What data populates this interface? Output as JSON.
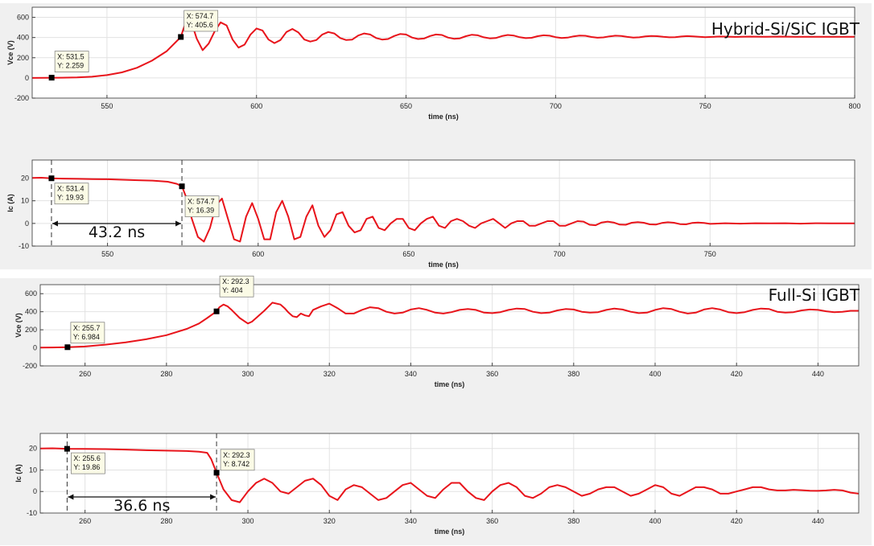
{
  "section_titles": [
    "Hybrid-Si/SiC IGBT",
    "Full-Si IGBT"
  ],
  "chart_data": [
    {
      "type": "line",
      "title": "",
      "xlabel": "time (ns)",
      "ylabel": "Vce (V)",
      "xlim": [
        525,
        800
      ],
      "ylim": [
        -200,
        700
      ],
      "xticks": [
        550,
        600,
        650,
        700,
        750,
        800
      ],
      "yticks": [
        -200,
        0,
        200,
        400,
        600
      ],
      "grid": true,
      "color": "#e8141b",
      "x": [
        525,
        530,
        535,
        540,
        545,
        550,
        555,
        560,
        565,
        570,
        574.7,
        575.5,
        576.5,
        577.5,
        580,
        582,
        584,
        586,
        588,
        590,
        592,
        594,
        596,
        598,
        600,
        602,
        604,
        606,
        608,
        610,
        612,
        614,
        616,
        618,
        620,
        622,
        624,
        626,
        628,
        630,
        632,
        634,
        636,
        638,
        640,
        642,
        644,
        646,
        648,
        650,
        652,
        654,
        656,
        658,
        660,
        662,
        664,
        666,
        668,
        670,
        672,
        674,
        676,
        678,
        680,
        682,
        684,
        686,
        688,
        690,
        692,
        694,
        696,
        698,
        700,
        702,
        704,
        706,
        708,
        710,
        712,
        714,
        716,
        718,
        720,
        722,
        724,
        726,
        728,
        730,
        732,
        734,
        736,
        738,
        740,
        742,
        744,
        746,
        748,
        750,
        755,
        760,
        765,
        770,
        775,
        780,
        785,
        790,
        795,
        800
      ],
      "y": [
        0,
        1,
        2,
        5,
        12,
        28,
        55,
        100,
        170,
        265,
        405.6,
        480,
        560,
        620,
        390,
        275,
        340,
        460,
        550,
        520,
        380,
        300,
        330,
        430,
        490,
        470,
        380,
        345,
        375,
        455,
        485,
        450,
        380,
        360,
        375,
        430,
        455,
        440,
        395,
        375,
        380,
        420,
        440,
        430,
        395,
        380,
        385,
        415,
        435,
        430,
        400,
        385,
        390,
        415,
        430,
        425,
        400,
        388,
        392,
        413,
        428,
        422,
        402,
        392,
        395,
        414,
        425,
        420,
        403,
        394,
        397,
        413,
        422,
        418,
        404,
        396,
        399,
        412,
        420,
        417,
        405,
        398,
        401,
        412,
        418,
        415,
        406,
        400,
        402,
        411,
        416,
        413,
        407,
        402,
        404,
        410,
        414,
        411,
        407,
        404,
        410,
        406,
        409,
        407,
        409,
        407,
        408,
        408,
        408,
        408
      ],
      "annotations": [
        {
          "x": 531.5,
          "y": 2.259,
          "label_x": "X: 531.5",
          "label_y": "Y: 2.259"
        },
        {
          "x": 574.7,
          "y": 405.6,
          "label_x": "X: 574.7",
          "label_y": "Y: 405.6"
        }
      ]
    },
    {
      "type": "line",
      "title": "",
      "xlabel": "time (ns)",
      "ylabel": "Ic (A)",
      "xlim": [
        525,
        798
      ],
      "ylim": [
        -10,
        28
      ],
      "xticks": [
        550,
        600,
        650,
        700,
        750
      ],
      "yticks": [
        -10,
        0,
        10,
        20
      ],
      "grid": true,
      "color": "#e8141b",
      "x": [
        525,
        528,
        531.4,
        535,
        540,
        545,
        550,
        555,
        560,
        565,
        570,
        573,
        574.7,
        576,
        578,
        580,
        582,
        584,
        586,
        588,
        590,
        592,
        594,
        596,
        598,
        600,
        602,
        604,
        606,
        608,
        610,
        612,
        614,
        616,
        618,
        620,
        622,
        624,
        626,
        628,
        630,
        632,
        634,
        636,
        638,
        640,
        642,
        644,
        646,
        648,
        650,
        652,
        654,
        656,
        658,
        660,
        662,
        664,
        666,
        668,
        670,
        672,
        674,
        676,
        678,
        680,
        682,
        684,
        686,
        688,
        690,
        692,
        694,
        696,
        698,
        700,
        702,
        704,
        706,
        708,
        710,
        712,
        714,
        716,
        718,
        720,
        722,
        724,
        726,
        728,
        730,
        732,
        734,
        736,
        738,
        740,
        742,
        744,
        746,
        748,
        750,
        755,
        760,
        765,
        770,
        775,
        780,
        785,
        790,
        795,
        798
      ],
      "y": [
        20.1,
        20.2,
        19.93,
        19.8,
        19.7,
        19.6,
        19.5,
        19.3,
        19.1,
        18.9,
        18.4,
        17.5,
        16.39,
        12,
        2,
        -6,
        -8,
        -2,
        8,
        11,
        2,
        -7,
        -8,
        3,
        9,
        2,
        -7,
        -7,
        5,
        10,
        3,
        -7,
        -6,
        3,
        8,
        -1,
        -6,
        -3,
        4,
        5,
        -1,
        -4,
        -3,
        2,
        3,
        -2,
        -3,
        0,
        2,
        2,
        -2,
        -3,
        0,
        2,
        3,
        -1,
        -2,
        1,
        2,
        1,
        -1,
        -2,
        0,
        1,
        2,
        0,
        -2,
        0,
        1,
        1,
        -1,
        -1,
        0,
        1,
        1,
        -1,
        -1,
        0,
        1,
        0.8,
        -0.6,
        -0.8,
        0.4,
        0.8,
        0.4,
        -0.5,
        -0.6,
        0.3,
        0.6,
        0.3,
        -0.4,
        -0.5,
        0.2,
        0.5,
        0.3,
        -0.3,
        -0.4,
        0.2,
        0.4,
        0.2,
        -0.2,
        0.1,
        -0.1,
        0.1,
        0,
        0.1,
        -0.1,
        0.1,
        0,
        0,
        0
      ],
      "annotations": [
        {
          "x": 531.4,
          "y": 19.93,
          "label_x": "X: 531.4",
          "label_y": "Y: 19.93"
        },
        {
          "x": 574.7,
          "y": 16.39,
          "label_x": "X: 574.7",
          "label_y": "Y: 16.39"
        }
      ],
      "interval": {
        "label": "43.2 ns",
        "x_start": 531.4,
        "x_end": 574.7
      }
    },
    {
      "type": "line",
      "title": "",
      "xlabel": "time (ns)",
      "ylabel": "Vce (V)",
      "xlim": [
        249,
        450
      ],
      "ylim": [
        -200,
        700
      ],
      "xticks": [
        260,
        280,
        300,
        320,
        340,
        360,
        380,
        400,
        420,
        440
      ],
      "yticks": [
        -200,
        0,
        200,
        400,
        600
      ],
      "grid": true,
      "color": "#e8141b",
      "x": [
        249,
        252,
        255.7,
        260,
        265,
        270,
        275,
        280,
        285,
        288,
        290,
        292.3,
        293,
        294,
        295,
        296,
        298,
        300,
        301,
        302,
        304,
        306,
        308,
        309,
        310,
        311,
        312,
        313,
        314,
        315,
        316,
        318,
        320,
        322,
        324,
        326,
        328,
        330,
        332,
        334,
        336,
        338,
        340,
        342,
        344,
        346,
        348,
        350,
        352,
        354,
        356,
        358,
        360,
        362,
        364,
        366,
        368,
        370,
        372,
        374,
        376,
        378,
        380,
        382,
        384,
        386,
        388,
        390,
        392,
        394,
        396,
        398,
        400,
        402,
        404,
        406,
        408,
        410,
        412,
        414,
        416,
        418,
        420,
        422,
        424,
        426,
        428,
        430,
        432,
        434,
        436,
        438,
        440,
        442,
        444,
        446,
        448,
        450
      ],
      "y": [
        2,
        4,
        6.984,
        15,
        35,
        60,
        95,
        140,
        210,
        270,
        330,
        404,
        450,
        480,
        460,
        420,
        330,
        270,
        290,
        330,
        410,
        500,
        480,
        440,
        390,
        350,
        340,
        380,
        360,
        350,
        420,
        460,
        490,
        440,
        380,
        380,
        420,
        450,
        440,
        400,
        380,
        390,
        425,
        440,
        420,
        390,
        380,
        395,
        420,
        430,
        420,
        390,
        385,
        395,
        420,
        435,
        430,
        400,
        385,
        390,
        415,
        430,
        425,
        400,
        390,
        395,
        420,
        435,
        425,
        400,
        385,
        390,
        420,
        440,
        430,
        400,
        380,
        390,
        425,
        440,
        425,
        395,
        385,
        395,
        420,
        435,
        430,
        400,
        390,
        395,
        415,
        425,
        420,
        405,
        395,
        400,
        410,
        410
      ],
      "annotations": [
        {
          "x": 255.7,
          "y": 6.984,
          "label_x": "X: 255.7",
          "label_y": "Y: 6.984"
        },
        {
          "x": 292.3,
          "y": 404,
          "label_x": "X: 292.3",
          "label_y": "Y: 404"
        }
      ]
    },
    {
      "type": "line",
      "title": "",
      "xlabel": "time (ns)",
      "ylabel": "Ic (A)",
      "xlim": [
        249,
        450
      ],
      "ylim": [
        -10,
        27
      ],
      "xticks": [
        260,
        280,
        300,
        320,
        340,
        360,
        380,
        400,
        420,
        440
      ],
      "yticks": [
        -10,
        0,
        10,
        20
      ],
      "grid": true,
      "color": "#e8141b",
      "x": [
        249,
        252,
        255.6,
        260,
        265,
        270,
        275,
        280,
        285,
        288,
        290,
        291,
        292.3,
        294,
        296,
        298,
        300,
        302,
        304,
        306,
        308,
        310,
        312,
        314,
        316,
        318,
        320,
        322,
        324,
        326,
        328,
        330,
        332,
        334,
        336,
        338,
        340,
        342,
        344,
        346,
        348,
        350,
        352,
        354,
        356,
        358,
        360,
        362,
        364,
        366,
        368,
        370,
        372,
        374,
        376,
        378,
        380,
        382,
        384,
        386,
        388,
        390,
        392,
        394,
        396,
        398,
        400,
        402,
        404,
        406,
        408,
        410,
        412,
        414,
        416,
        418,
        420,
        422,
        424,
        426,
        428,
        430,
        432,
        434,
        436,
        438,
        440,
        442,
        444,
        446,
        448,
        450
      ],
      "y": [
        20,
        20.1,
        19.86,
        19.8,
        19.7,
        19.5,
        19.2,
        19,
        18.8,
        18.5,
        18,
        15,
        8.742,
        1,
        -4,
        -5,
        0,
        4,
        6,
        4,
        0,
        -1,
        2,
        5,
        6,
        3,
        -2,
        -4,
        1,
        3,
        2,
        -1,
        -4,
        -3,
        0,
        3,
        4,
        1,
        -2,
        -3,
        1,
        4,
        4,
        0,
        -3,
        -4,
        0,
        3,
        4,
        2,
        -2,
        -3,
        -1,
        2,
        3,
        2,
        0,
        -2,
        -1,
        1,
        2,
        2,
        0,
        -2,
        -1,
        1,
        3,
        2,
        -1,
        -2,
        0,
        2,
        2,
        1,
        -1,
        -1,
        0,
        1,
        2,
        2,
        1,
        0.5,
        0.5,
        0.8,
        0.6,
        0.4,
        0.3,
        0.5,
        0.8,
        0.5,
        -0.5,
        -1
      ],
      "annotations": [
        {
          "x": 255.6,
          "y": 19.86,
          "label_x": "X: 255.6",
          "label_y": "Y: 19.86"
        },
        {
          "x": 292.3,
          "y": 8.742,
          "label_x": "X: 292.3",
          "label_y": "Y: 8.742"
        }
      ],
      "interval": {
        "label": "36.6 ns",
        "x_start": 255.6,
        "x_end": 292.3
      }
    }
  ]
}
